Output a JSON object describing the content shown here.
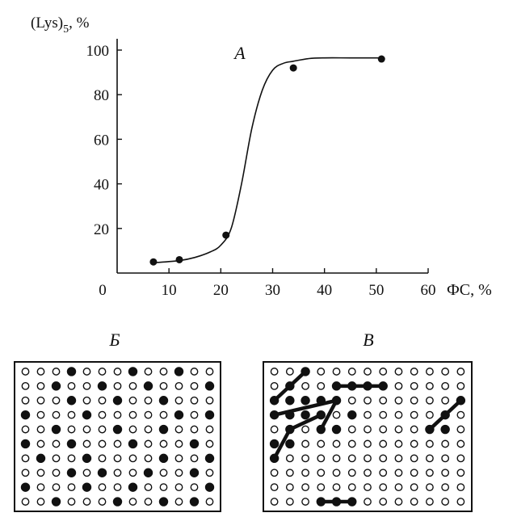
{
  "chart_data": {
    "type": "line",
    "title": "A",
    "ylabel_main": "(Lys)",
    "ylabel_sub": "5",
    "ylabel_suffix": ", %",
    "xlabel": "ФС, %",
    "xlim": [
      0,
      60
    ],
    "ylim": [
      0,
      100
    ],
    "x_ticks": [
      "0",
      "10",
      "20",
      "30",
      "40",
      "50",
      "60"
    ],
    "y_ticks": [
      "20",
      "40",
      "60",
      "80",
      "100"
    ],
    "points": [
      {
        "x": 7,
        "y": 5
      },
      {
        "x": 12,
        "y": 6
      },
      {
        "x": 21,
        "y": 17
      },
      {
        "x": 34,
        "y": 92
      },
      {
        "x": 51,
        "y": 96
      }
    ],
    "curve": [
      [
        7,
        4.6
      ],
      [
        12,
        5.6
      ],
      [
        15,
        7
      ],
      [
        18,
        9.5
      ],
      [
        20,
        12.5
      ],
      [
        22,
        20
      ],
      [
        24,
        40
      ],
      [
        26,
        65
      ],
      [
        28,
        82
      ],
      [
        30,
        91
      ],
      [
        32,
        94
      ],
      [
        34,
        95
      ],
      [
        37,
        96.2
      ],
      [
        40,
        96.5
      ],
      [
        45,
        96.5
      ],
      [
        51,
        96.5
      ]
    ],
    "grid": false,
    "legend": "none"
  },
  "panels": {
    "b": {
      "label": "Б",
      "rows": 10,
      "cols": 13,
      "filled": [
        [
          0,
          3
        ],
        [
          0,
          7
        ],
        [
          0,
          10
        ],
        [
          1,
          2
        ],
        [
          1,
          5
        ],
        [
          1,
          8
        ],
        [
          1,
          12
        ],
        [
          2,
          3
        ],
        [
          2,
          6
        ],
        [
          2,
          9
        ],
        [
          3,
          0
        ],
        [
          3,
          4
        ],
        [
          3,
          10
        ],
        [
          3,
          12
        ],
        [
          4,
          2
        ],
        [
          4,
          6
        ],
        [
          4,
          9
        ],
        [
          5,
          0
        ],
        [
          5,
          3
        ],
        [
          5,
          7
        ],
        [
          5,
          11
        ],
        [
          6,
          1
        ],
        [
          6,
          4
        ],
        [
          6,
          9
        ],
        [
          6,
          12
        ],
        [
          7,
          3
        ],
        [
          7,
          5
        ],
        [
          7,
          8
        ],
        [
          7,
          11
        ],
        [
          8,
          0
        ],
        [
          8,
          4
        ],
        [
          8,
          7
        ],
        [
          8,
          12
        ],
        [
          9,
          2
        ],
        [
          9,
          6
        ],
        [
          9,
          9
        ],
        [
          9,
          11
        ]
      ]
    },
    "v": {
      "label": "В",
      "rows": 10,
      "cols": 13,
      "filled": [
        [
          0,
          2
        ],
        [
          1,
          1
        ],
        [
          1,
          4
        ],
        [
          1,
          5
        ],
        [
          1,
          6
        ],
        [
          1,
          7
        ],
        [
          2,
          0
        ],
        [
          2,
          1
        ],
        [
          2,
          2
        ],
        [
          2,
          3
        ],
        [
          2,
          4
        ],
        [
          2,
          12
        ],
        [
          3,
          0
        ],
        [
          3,
          1
        ],
        [
          3,
          2
        ],
        [
          3,
          3
        ],
        [
          3,
          5
        ],
        [
          3,
          11
        ],
        [
          4,
          1
        ],
        [
          4,
          3
        ],
        [
          4,
          4
        ],
        [
          4,
          10
        ],
        [
          4,
          11
        ],
        [
          5,
          0
        ],
        [
          5,
          1
        ],
        [
          6,
          0
        ],
        [
          9,
          3
        ],
        [
          9,
          4
        ],
        [
          9,
          5
        ]
      ],
      "links": [
        [
          [
            2,
            0
          ],
          [
            0,
            2
          ]
        ],
        [
          [
            1,
            4
          ],
          [
            1,
            7
          ]
        ],
        [
          [
            3,
            0
          ],
          [
            2,
            4
          ]
        ],
        [
          [
            4,
            1
          ],
          [
            3,
            3
          ]
        ],
        [
          [
            4,
            3
          ],
          [
            2,
            4
          ]
        ],
        [
          [
            6,
            0
          ],
          [
            4,
            1
          ]
        ],
        [
          [
            4,
            10
          ],
          [
            2,
            12
          ]
        ],
        [
          [
            9,
            3
          ],
          [
            9,
            5
          ]
        ]
      ]
    }
  }
}
